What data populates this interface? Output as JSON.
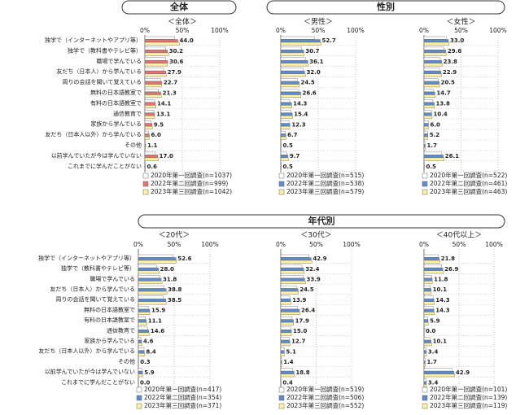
{
  "sections": [
    "全体",
    "性別",
    "年代別"
  ],
  "chart_data": [
    {
      "type": "hbar",
      "title": "＜全体＞",
      "categories": [
        "独学で（インターネットやアプリ等）",
        "独学で（教科書やテレビ等）",
        "職場で学んでいる",
        "友だち（日本人）から学んでいる",
        "周りの会話を聞いて覚えている",
        "無料の日本語教室で",
        "有料の日本語教室で",
        "通信教育で",
        "家族から学んでいる",
        "友だち（日本人以外）から学んでいる",
        "その他",
        "以前学んでいたが今は学んでいない",
        "これまでに学んだことがない"
      ],
      "xlim": [
        0,
        100
      ],
      "xticks": [
        {
          "value": 0,
          "label": "0%"
        },
        {
          "value": 50,
          "label": "50%"
        },
        {
          "value": 100,
          "label": "100%"
        }
      ],
      "grid": true,
      "series": [
        {
          "name": "2020年第一回調査(n=1037)",
          "color": "#ffffff",
          "values": [
            40,
            28,
            28,
            25,
            21,
            18,
            13,
            12,
            8,
            5,
            1,
            14,
            1
          ]
        },
        {
          "name": "2022年第二回調査(n=999)",
          "color": "#e8706f",
          "values": [
            44.0,
            30.2,
            30.6,
            27.9,
            22.7,
            21.3,
            14.1,
            13.1,
            9.5,
            6.0,
            1.1,
            17.0,
            0.6
          ],
          "value_labels": [
            "44.0",
            "30.2",
            "30.6",
            "27.9",
            "22.7",
            "21.3",
            "14.1",
            "13.1",
            "9.5",
            "6.0",
            "1.1",
            "17.0",
            "0.6"
          ]
        },
        {
          "name": "2023年第三回調査(n=1042)",
          "color": "#fff2a0",
          "values": [
            46,
            32,
            30,
            29,
            22,
            22,
            15,
            13,
            10,
            6,
            1,
            18,
            1
          ]
        }
      ]
    },
    {
      "type": "hbar",
      "title": "＜男性＞",
      "xlim": [
        0,
        100
      ],
      "xticks": [
        {
          "value": 0,
          "label": "0%"
        },
        {
          "value": 50,
          "label": "50%"
        },
        {
          "value": 100,
          "label": "100%"
        }
      ],
      "grid": true,
      "series": [
        {
          "name": "2020年第一回調査(n=515)",
          "color": "#ffffff",
          "values": [
            45,
            28,
            33,
            30,
            22,
            24,
            12,
            14,
            11,
            6,
            0.5,
            8,
            0.5
          ]
        },
        {
          "name": "2022年第二回調査(n=538)",
          "color": "#5b8bd0",
          "values": [
            52.7,
            30.7,
            36.1,
            32.0,
            24.5,
            26.6,
            14.3,
            15.4,
            12.3,
            6.7,
            0.5,
            9.7,
            0.5
          ],
          "value_labels": [
            "52.7",
            "30.7",
            "36.1",
            "32.0",
            "24.5",
            "26.6",
            "14.3",
            "15.4",
            "12.3",
            "6.7",
            "0.5",
            "9.7",
            "0.5"
          ]
        },
        {
          "name": "2023年第三回調査(n=579)",
          "color": "#fff2a0",
          "values": [
            54,
            31,
            37,
            33,
            25,
            27,
            15,
            16,
            12,
            7,
            0.5,
            10,
            0.5
          ]
        }
      ]
    },
    {
      "type": "hbar",
      "title": "＜女性＞",
      "xlim": [
        0,
        100
      ],
      "xticks": [
        {
          "value": 0,
          "label": "0%"
        },
        {
          "value": 50,
          "label": "50%"
        },
        {
          "value": 100,
          "label": "100%"
        }
      ],
      "grid": true,
      "series": [
        {
          "name": "2020年第一回調査(n=522)",
          "color": "#ffffff",
          "values": [
            30,
            27,
            22,
            21,
            19,
            13,
            12,
            10,
            6,
            5,
            1.5,
            24,
            0.5
          ]
        },
        {
          "name": "2022年第二回調査(n=461)",
          "color": "#5b8bd0",
          "values": [
            33.0,
            29.6,
            23.8,
            22.9,
            20.5,
            14.7,
            13.8,
            10.4,
            6.0,
            5.2,
            1.7,
            26.1,
            0.5
          ],
          "value_labels": [
            "33.0",
            "29.6",
            "23.8",
            "22.9",
            "20.5",
            "14.7",
            "13.8",
            "10.4",
            "6.0",
            "5.2",
            "1.7",
            "26.1",
            "0.5"
          ]
        },
        {
          "name": "2023年第三回調査(n=463)",
          "color": "#fff2a0",
          "values": [
            34,
            30,
            25,
            24,
            21,
            15,
            14,
            11,
            6,
            5,
            1.7,
            27,
            0.5
          ]
        }
      ]
    },
    {
      "type": "hbar",
      "title": "＜20代＞",
      "categories": [
        "独学で（インターネットやアプリ等）",
        "独学で（教科書やテレビ等）",
        "職場で学んでいる",
        "友だち（日本人）から学んでいる",
        "周りの会話を聞いて覚えている",
        "無料の日本語教室で",
        "有料の日本語教室で",
        "通信教育で",
        "家族から学んでいる",
        "友だち（日本人以外）から学んでいる",
        "その他",
        "以前学んでいたが今は学んでいない",
        "これまでに学んだことがない"
      ],
      "xlim": [
        0,
        100
      ],
      "xticks": [
        {
          "value": 0,
          "label": "0%"
        },
        {
          "value": 50,
          "label": "50%"
        },
        {
          "value": 100,
          "label": "100%"
        }
      ],
      "grid": true,
      "series": [
        {
          "name": "2020年第一回調査(n=417)",
          "color": "#ffffff",
          "values": [
            48,
            26,
            30,
            36,
            35,
            14,
            10,
            13,
            4,
            8,
            0.3,
            5,
            0
          ]
        },
        {
          "name": "2022年第二回調査(n=354)",
          "color": "#5b8bd0",
          "values": [
            52.6,
            28.0,
            31.8,
            38.8,
            38.5,
            15.9,
            11.1,
            14.6,
            4.6,
            8.4,
            0.3,
            5.9,
            0.0
          ],
          "value_labels": [
            "52.6",
            "28.0",
            "31.8",
            "38.8",
            "38.5",
            "15.9",
            "11.1",
            "14.6",
            "4.6",
            "8.4",
            "0.3",
            "5.9",
            "0.0"
          ]
        },
        {
          "name": "2023年第三回調査(n=371)",
          "color": "#fff2a0",
          "values": [
            53,
            29,
            33,
            40,
            39,
            16,
            12,
            15,
            5,
            9,
            0.3,
            6,
            0
          ]
        }
      ]
    },
    {
      "type": "hbar",
      "title": "＜30代＞",
      "xlim": [
        0,
        100
      ],
      "xticks": [
        {
          "value": 0,
          "label": "0%"
        },
        {
          "value": 50,
          "label": "50%"
        },
        {
          "value": 100,
          "label": "100%"
        }
      ],
      "grid": true,
      "series": [
        {
          "name": "2020年第一回調査(n=519)",
          "color": "#ffffff",
          "values": [
            40,
            30,
            32,
            22,
            13,
            24,
            16,
            14,
            12,
            5,
            1.3,
            17,
            0.4
          ]
        },
        {
          "name": "2022年第二回調査(n=506)",
          "color": "#5b8bd0",
          "values": [
            42.9,
            32.4,
            33.9,
            24.5,
            13.9,
            26.4,
            17.9,
            15.0,
            12.7,
            5.1,
            1.4,
            18.8,
            0.4
          ],
          "value_labels": [
            "42.9",
            "32.4",
            "33.9",
            "24.5",
            "13.9",
            "26.4",
            "17.9",
            "15.0",
            "12.7",
            "5.1",
            "1.4",
            "18.8",
            "0.4"
          ]
        },
        {
          "name": "2023年第三回調査(n=552)",
          "color": "#fff2a0",
          "values": [
            44,
            33,
            35,
            25,
            14,
            27,
            18,
            15,
            13,
            5,
            1.4,
            19,
            0.4
          ]
        }
      ]
    },
    {
      "type": "hbar",
      "title": "＜40代以上＞",
      "xlim": [
        0,
        100
      ],
      "xticks": [
        {
          "value": 0,
          "label": "0%"
        },
        {
          "value": 50,
          "label": "50%"
        },
        {
          "value": 100,
          "label": "100%"
        }
      ],
      "grid": true,
      "series": [
        {
          "name": "2020年第一回調査(n=101)",
          "color": "#ffffff",
          "values": [
            20,
            25,
            11,
            9,
            13,
            13,
            5,
            1,
            9,
            3,
            1.5,
            40,
            3
          ]
        },
        {
          "name": "2022年第二回調査(n=139)",
          "color": "#5b8bd0",
          "values": [
            21.8,
            26.9,
            11.8,
            10.1,
            14.3,
            14.3,
            5.9,
            0.0,
            10.1,
            3.4,
            1.7,
            42.9,
            3.4
          ],
          "value_labels": [
            "21.8",
            "26.9",
            "11.8",
            "10.1",
            "14.3",
            "14.3",
            "5.9",
            "0.0",
            "10.1",
            "3.4",
            "1.7",
            "42.9",
            "3.4"
          ]
        },
        {
          "name": "2023年第三回調査(n=119)",
          "color": "#fff2a0",
          "values": [
            23,
            28,
            12,
            10,
            15,
            15,
            6,
            0.5,
            11,
            3.5,
            2,
            44,
            3.5
          ]
        }
      ]
    }
  ]
}
